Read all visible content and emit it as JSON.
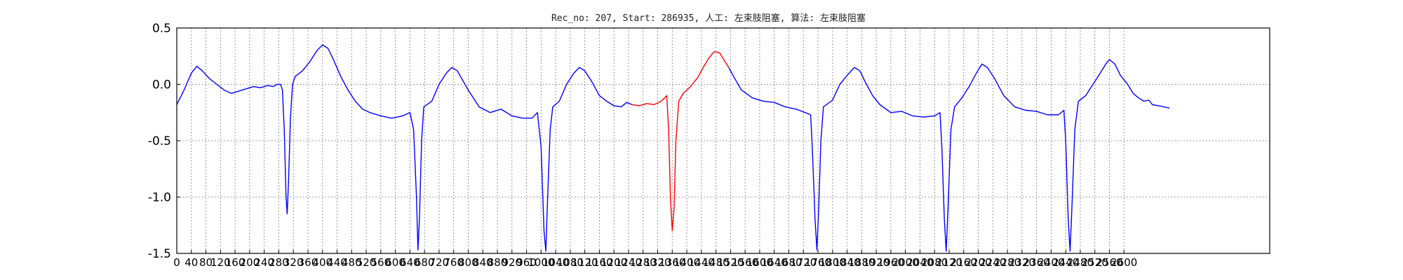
{
  "chart_data": {
    "type": "line",
    "title": "Rec_no: 207, Start: 286935, 人工: 左束肢阻塞, 算法: 左束肢阻塞",
    "xlabel": "",
    "ylabel": "",
    "xlim": [
      0,
      3000
    ],
    "ylim": [
      -1.5,
      0.5
    ],
    "yticks": [
      "-1.5",
      "-1.0",
      "-0.5",
      "0.0",
      "0.5"
    ],
    "xtick_values": [
      0,
      40,
      80,
      120,
      160,
      200,
      240,
      280,
      320,
      360,
      400,
      440,
      480,
      520,
      560,
      600,
      640,
      680,
      720,
      760,
      800,
      840,
      880,
      920,
      960,
      1000,
      1040,
      1080,
      1120,
      1160,
      1200,
      1240,
      1280,
      1320,
      1360,
      1400,
      1440,
      1480,
      1520,
      1560,
      1600,
      1640,
      1680,
      1720,
      1760,
      1800,
      1840,
      1880,
      1920,
      1960,
      2000,
      2040,
      2080,
      2120,
      2160,
      2200,
      2240,
      2280,
      2320,
      2360,
      2400,
      2440,
      2480,
      2520,
      2560,
      2600
    ],
    "grid": true,
    "series": [
      {
        "color": "#0000ff",
        "points": [
          [
            0,
            -0.18
          ],
          [
            20,
            -0.05
          ],
          [
            40,
            0.1
          ],
          [
            55,
            0.16
          ],
          [
            70,
            0.12
          ],
          [
            90,
            0.05
          ],
          [
            110,
            0.0
          ],
          [
            130,
            -0.05
          ],
          [
            150,
            -0.08
          ],
          [
            170,
            -0.06
          ],
          [
            190,
            -0.04
          ],
          [
            210,
            -0.02
          ],
          [
            230,
            -0.03
          ],
          [
            250,
            -0.01
          ],
          [
            265,
            -0.02
          ],
          [
            275,
            0.0
          ],
          [
            285,
            0.0
          ],
          [
            290,
            -0.05
          ],
          [
            295,
            -0.4
          ],
          [
            300,
            -1.0
          ],
          [
            303,
            -1.15
          ],
          [
            307,
            -0.85
          ],
          [
            312,
            -0.3
          ],
          [
            318,
            0.0
          ],
          [
            325,
            0.07
          ],
          [
            345,
            0.12
          ],
          [
            365,
            0.2
          ],
          [
            385,
            0.3
          ],
          [
            400,
            0.35
          ],
          [
            415,
            0.32
          ],
          [
            430,
            0.22
          ],
          [
            450,
            0.07
          ],
          [
            470,
            -0.05
          ],
          [
            490,
            -0.15
          ],
          [
            510,
            -0.22
          ],
          [
            530,
            -0.25
          ],
          [
            560,
            -0.28
          ],
          [
            590,
            -0.3
          ],
          [
            620,
            -0.28
          ],
          [
            640,
            -0.25
          ],
          [
            650,
            -0.4
          ],
          [
            658,
            -1.0
          ],
          [
            662,
            -1.47
          ],
          [
            666,
            -1.2
          ],
          [
            672,
            -0.5
          ],
          [
            678,
            -0.2
          ],
          [
            700,
            -0.15
          ],
          [
            720,
            0.0
          ],
          [
            740,
            0.1
          ],
          [
            755,
            0.15
          ],
          [
            770,
            0.12
          ],
          [
            800,
            -0.05
          ],
          [
            830,
            -0.2
          ],
          [
            860,
            -0.25
          ],
          [
            890,
            -0.22
          ],
          [
            920,
            -0.28
          ],
          [
            950,
            -0.3
          ],
          [
            975,
            -0.3
          ],
          [
            990,
            -0.25
          ],
          [
            1000,
            -0.55
          ],
          [
            1008,
            -1.3
          ],
          [
            1013,
            -1.48
          ],
          [
            1018,
            -1.0
          ],
          [
            1025,
            -0.4
          ],
          [
            1032,
            -0.2
          ],
          [
            1050,
            -0.15
          ],
          [
            1070,
            0.0
          ],
          [
            1090,
            0.1
          ],
          [
            1105,
            0.15
          ],
          [
            1120,
            0.12
          ],
          [
            1140,
            0.02
          ],
          [
            1160,
            -0.1
          ],
          [
            1180,
            -0.15
          ],
          [
            1200,
            -0.19
          ],
          [
            1220,
            -0.2
          ],
          [
            1235,
            -0.16
          ],
          [
            1250,
            -0.18
          ]
        ]
      },
      {
        "color": "#ff0000",
        "points": [
          [
            1250,
            -0.18
          ],
          [
            1270,
            -0.19
          ],
          [
            1290,
            -0.17
          ],
          [
            1310,
            -0.18
          ],
          [
            1330,
            -0.15
          ],
          [
            1345,
            -0.1
          ],
          [
            1350,
            -0.4
          ],
          [
            1355,
            -1.0
          ],
          [
            1360,
            -1.3
          ],
          [
            1365,
            -1.1
          ],
          [
            1370,
            -0.5
          ],
          [
            1378,
            -0.15
          ],
          [
            1390,
            -0.08
          ],
          [
            1410,
            -0.02
          ],
          [
            1430,
            0.06
          ],
          [
            1445,
            0.15
          ],
          [
            1460,
            0.23
          ],
          [
            1475,
            0.29
          ],
          [
            1490,
            0.28
          ],
          [
            1505,
            0.2
          ],
          [
            1515,
            0.15
          ]
        ]
      },
      {
        "color": "#0000ff",
        "points": [
          [
            1515,
            0.15
          ],
          [
            1530,
            0.06
          ],
          [
            1550,
            -0.05
          ],
          [
            1580,
            -0.12
          ],
          [
            1610,
            -0.15
          ],
          [
            1640,
            -0.16
          ],
          [
            1670,
            -0.2
          ],
          [
            1700,
            -0.22
          ],
          [
            1725,
            -0.25
          ],
          [
            1740,
            -0.27
          ],
          [
            1745,
            -0.6
          ],
          [
            1752,
            -1.2
          ],
          [
            1757,
            -1.47
          ],
          [
            1762,
            -1.1
          ],
          [
            1768,
            -0.5
          ],
          [
            1775,
            -0.2
          ],
          [
            1800,
            -0.14
          ],
          [
            1820,
            0.0
          ],
          [
            1840,
            0.08
          ],
          [
            1860,
            0.15
          ],
          [
            1875,
            0.12
          ],
          [
            1890,
            0.02
          ],
          [
            1910,
            -0.1
          ],
          [
            1930,
            -0.18
          ],
          [
            1960,
            -0.25
          ],
          [
            1990,
            -0.24
          ],
          [
            2020,
            -0.28
          ],
          [
            2050,
            -0.29
          ],
          [
            2080,
            -0.28
          ],
          [
            2095,
            -0.25
          ],
          [
            2100,
            -0.55
          ],
          [
            2107,
            -1.2
          ],
          [
            2112,
            -1.48
          ],
          [
            2117,
            -1.1
          ],
          [
            2125,
            -0.4
          ],
          [
            2135,
            -0.2
          ],
          [
            2155,
            -0.12
          ],
          [
            2175,
            -0.02
          ],
          [
            2195,
            0.1
          ],
          [
            2210,
            0.18
          ],
          [
            2225,
            0.15
          ],
          [
            2245,
            0.05
          ],
          [
            2270,
            -0.1
          ],
          [
            2300,
            -0.2
          ],
          [
            2330,
            -0.23
          ],
          [
            2360,
            -0.24
          ],
          [
            2390,
            -0.27
          ],
          [
            2420,
            -0.27
          ],
          [
            2435,
            -0.23
          ],
          [
            2440,
            -0.5
          ],
          [
            2447,
            -1.2
          ],
          [
            2452,
            -1.48
          ],
          [
            2457,
            -1.1
          ],
          [
            2465,
            -0.4
          ],
          [
            2475,
            -0.15
          ],
          [
            2495,
            -0.1
          ],
          [
            2515,
            0.0
          ],
          [
            2535,
            0.1
          ],
          [
            2550,
            0.18
          ],
          [
            2560,
            0.22
          ],
          [
            2575,
            0.18
          ],
          [
            2590,
            0.08
          ],
          [
            2610,
            0.0
          ],
          [
            2625,
            -0.08
          ],
          [
            2640,
            -0.12
          ],
          [
            2655,
            -0.15
          ],
          [
            2668,
            -0.14
          ],
          [
            2678,
            -0.18
          ],
          [
            2695,
            -0.19
          ],
          [
            2710,
            -0.2
          ],
          [
            2725,
            -0.21
          ]
        ]
      }
    ]
  }
}
